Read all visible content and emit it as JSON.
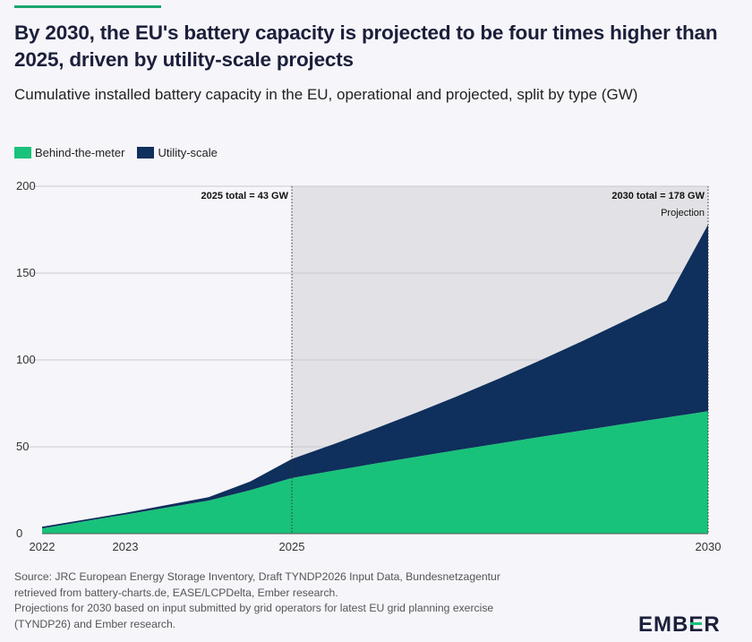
{
  "header": {
    "title": "By 2030, the EU's battery capacity is projected to be four times higher than 2025, driven by utility-scale projects",
    "subtitle": "Cumulative installed battery capacity in the EU, operational and projected, split by type (GW)"
  },
  "legend": {
    "items": [
      {
        "label": "Behind-the-meter",
        "color": "#19c27a"
      },
      {
        "label": "Utility-scale",
        "color": "#0f2f5c"
      }
    ]
  },
  "chart_data": {
    "type": "area",
    "stacked": true,
    "x": [
      2022,
      2022.5,
      2023,
      2023.5,
      2024,
      2024.5,
      2025,
      2025.5,
      2026,
      2026.5,
      2027,
      2027.5,
      2028,
      2028.5,
      2029,
      2029.5,
      2030
    ],
    "series": [
      {
        "name": "Behind-the-meter",
        "color": "#19c27a",
        "values": [
          3,
          7,
          11,
          15,
          19,
          25,
          32,
          36.2,
          40.3,
          44.3,
          48.2,
          52,
          55.8,
          59.5,
          63.2,
          66.8,
          70.5
        ]
      },
      {
        "name": "Utility-scale",
        "color": "#0f2f5c",
        "values": [
          1,
          1,
          1,
          1.5,
          2,
          5,
          11,
          15.3,
          20.1,
          25.4,
          31.2,
          37.5,
          44.3,
          51.6,
          59.3,
          67.3,
          107.5
        ]
      }
    ],
    "xticks": [
      2022,
      2023,
      2025,
      2030
    ],
    "yticks": [
      0,
      50,
      100,
      150,
      200
    ],
    "xlim": [
      2022,
      2030
    ],
    "ylim": [
      0,
      200
    ],
    "grid": true,
    "legend_position": "top-left",
    "shaded_region": {
      "from": 2025,
      "to": 2030,
      "color": "#e2e2e6"
    },
    "annotations": [
      {
        "text": "2025 total = 43 GW",
        "x": 2025,
        "bold": true
      },
      {
        "text": "2030 total = 178 GW",
        "x": 2030,
        "bold": true
      },
      {
        "text": "Projection",
        "x": 2030,
        "bold": false
      }
    ]
  },
  "source": {
    "lines": [
      "Source: JRC European Energy Storage Inventory, Draft TYNDP2026 Input Data, Bundesnetzagentur",
      "retrieved from battery-charts.de, EASE/LCPDelta, Ember research.",
      "Projections for 2030 based on input submitted by grid operators for latest EU grid planning exercise",
      "(TYNDP26) and Ember research."
    ]
  },
  "brand": {
    "logo": "EMBER",
    "accent": "#19a772"
  }
}
